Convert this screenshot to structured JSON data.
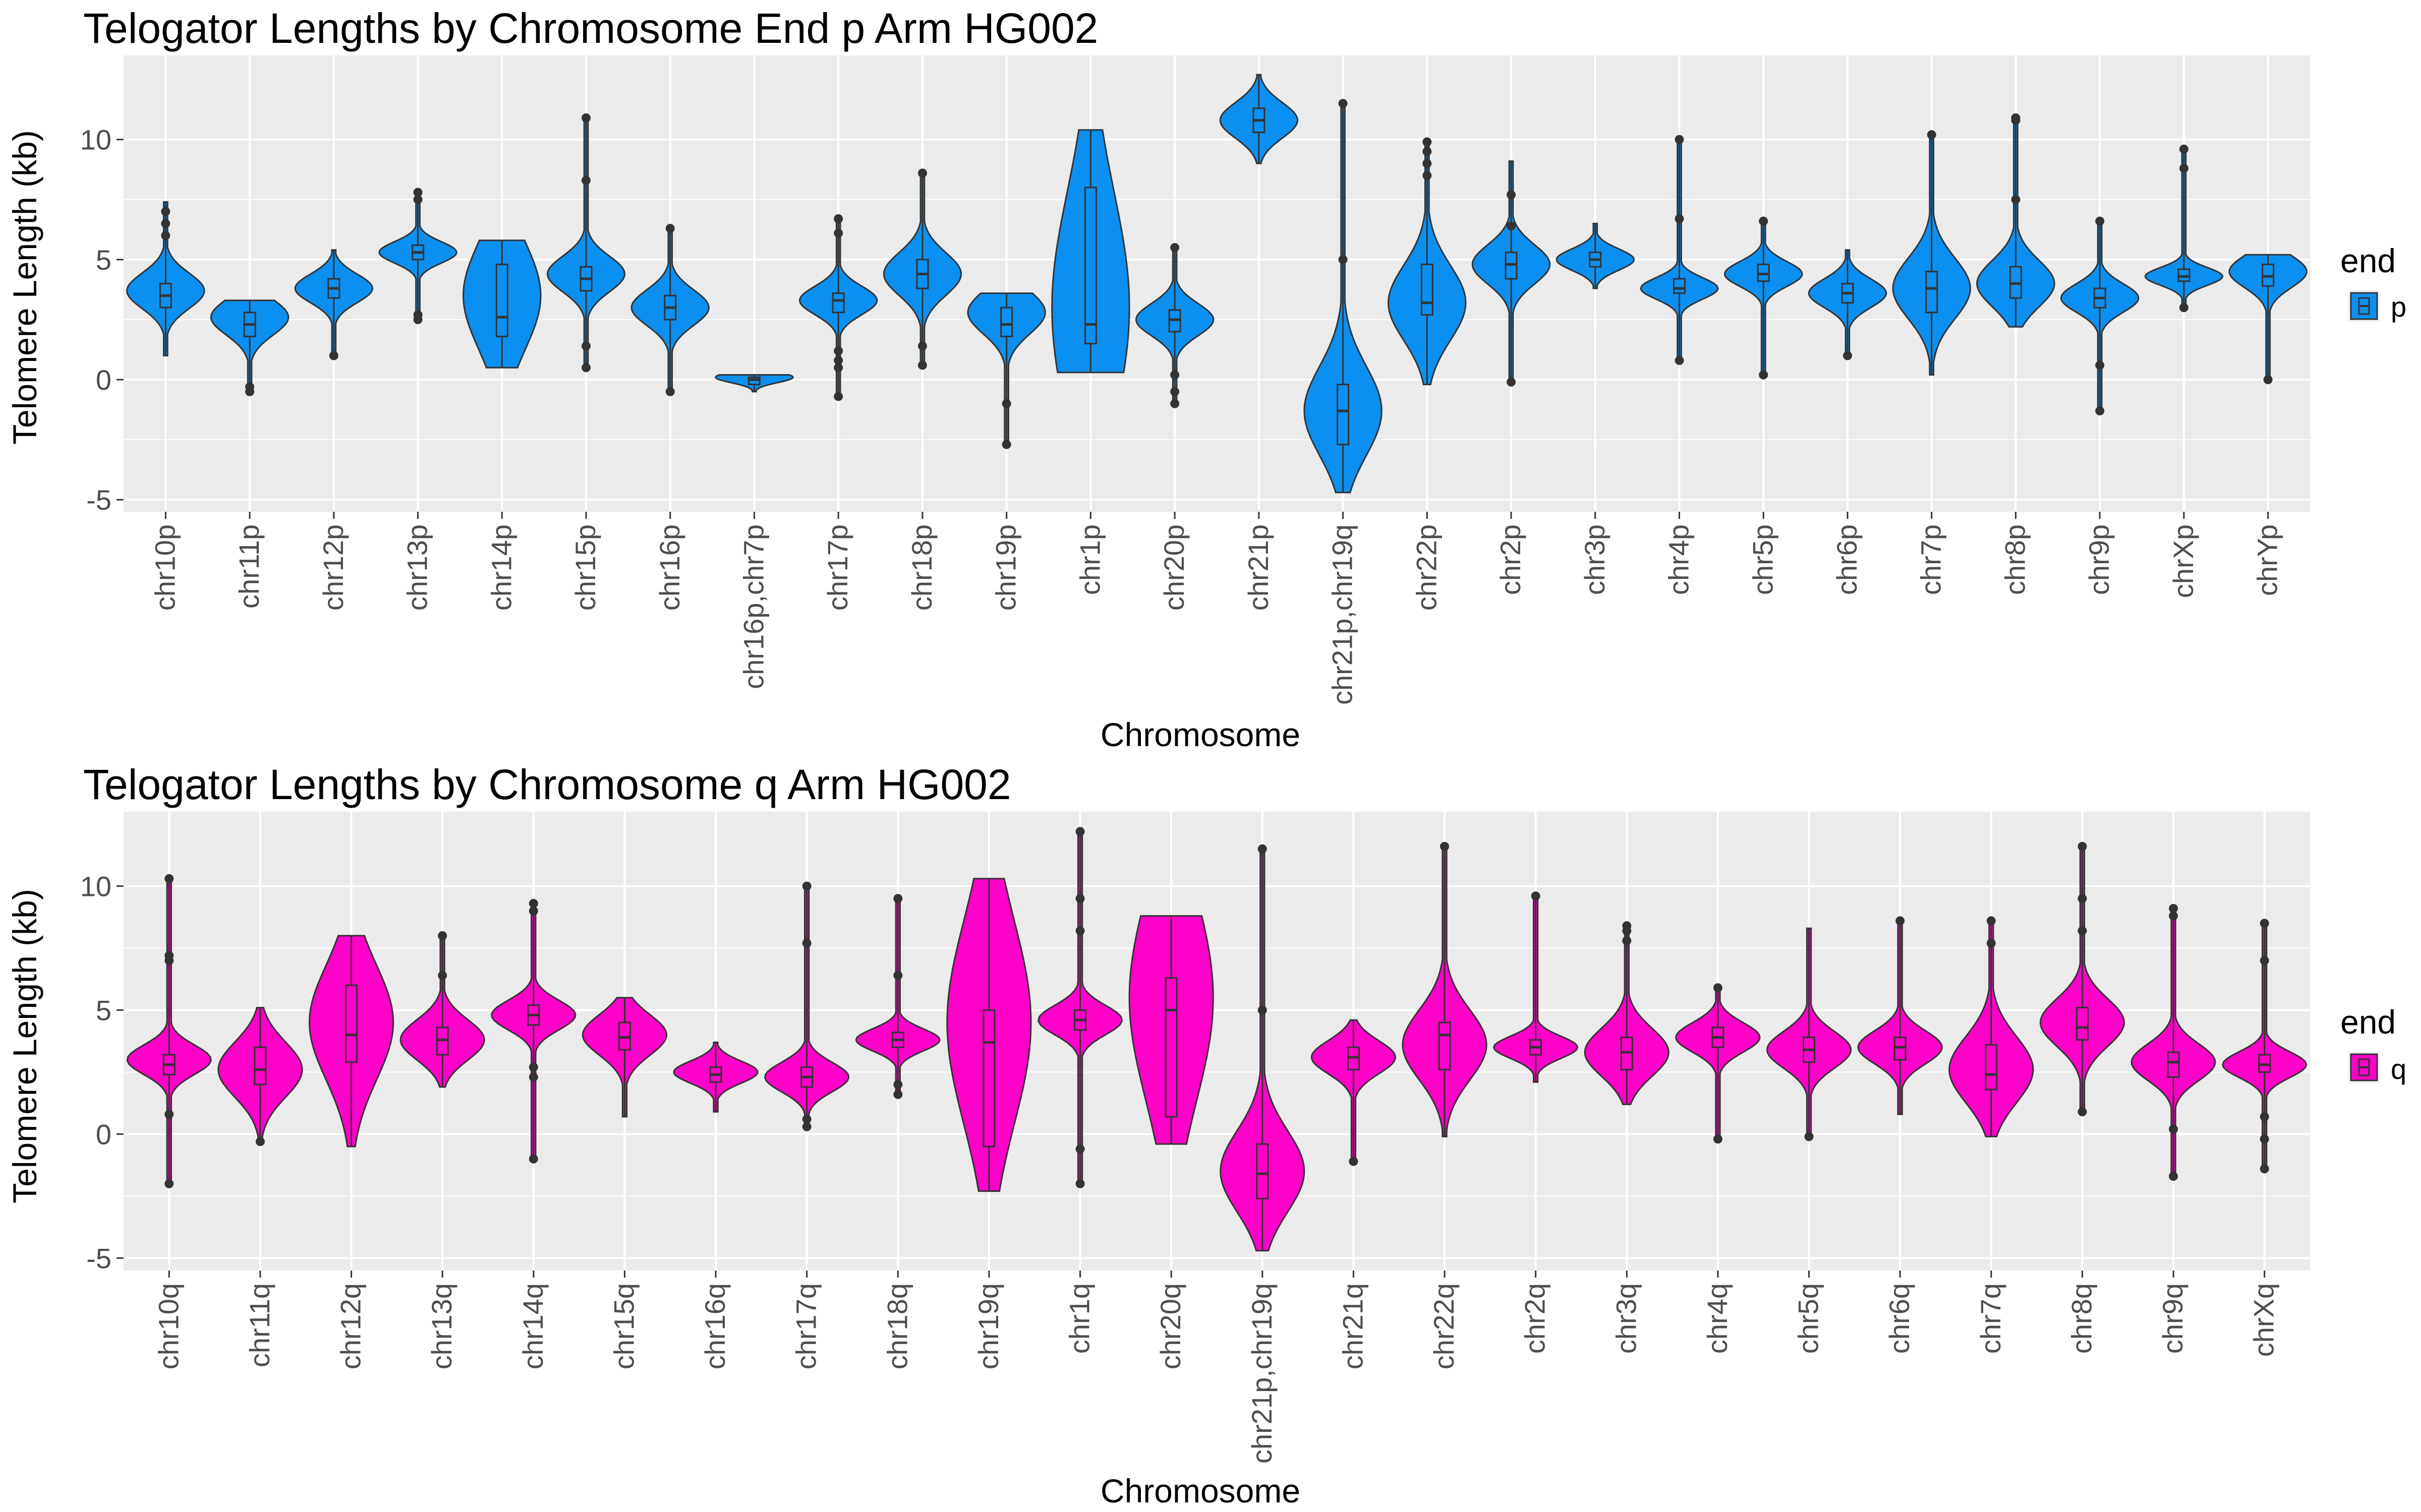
{
  "chart_data": [
    {
      "type": "violin",
      "title": "Telogator Lengths by Chromosome End p Arm HG002",
      "xlabel": "Chromosome",
      "ylabel": "Telomere Length (kb)",
      "ylim": [
        -5.5,
        13.5
      ],
      "yticks": [
        -5,
        0,
        5,
        10
      ],
      "grid": true,
      "legend": {
        "title": "end",
        "label": "p",
        "position": "right"
      },
      "color": "#0b8ff0",
      "categories": [
        "chr10p",
        "chr11p",
        "chr12p",
        "chr13p",
        "chr14p",
        "chr15p",
        "chr16p",
        "chr16p,chr7p",
        "chr17p",
        "chr18p",
        "chr19p",
        "chr1p",
        "chr20p",
        "chr21p",
        "chr21p,chr19q",
        "chr22p",
        "chr2p",
        "chr3p",
        "chr4p",
        "chr5p",
        "chr6p",
        "chr7p",
        "chr8p",
        "chr9p",
        "chrXp",
        "chrYp"
      ],
      "series": [
        {
          "min": 1.0,
          "q1": 3.0,
          "median": 3.5,
          "q3": 4.0,
          "max": 7.4,
          "peak": 3.7,
          "outliers": [
            6.0,
            6.5,
            7.0
          ]
        },
        {
          "min": -0.5,
          "q1": 1.8,
          "median": 2.3,
          "q3": 2.8,
          "max": 3.3,
          "peak": 2.6,
          "outliers": [
            -0.3,
            -0.5
          ]
        },
        {
          "min": 1.0,
          "q1": 3.4,
          "median": 3.8,
          "q3": 4.2,
          "max": 5.4,
          "peak": 3.8,
          "outliers": [
            1.0
          ]
        },
        {
          "min": 2.5,
          "q1": 5.0,
          "median": 5.3,
          "q3": 5.6,
          "max": 7.8,
          "peak": 5.3,
          "outliers": [
            2.5,
            2.7,
            7.5,
            7.8
          ]
        },
        {
          "min": 0.5,
          "q1": 1.8,
          "median": 2.6,
          "q3": 4.8,
          "max": 5.8,
          "peak": 3.5,
          "outliers": []
        },
        {
          "min": 0.5,
          "q1": 3.7,
          "median": 4.2,
          "q3": 4.7,
          "max": 10.9,
          "peak": 4.4,
          "outliers": [
            0.5,
            1.4,
            8.3,
            10.9
          ]
        },
        {
          "min": -0.6,
          "q1": 2.5,
          "median": 3.0,
          "q3": 3.5,
          "max": 6.4,
          "peak": 3.0,
          "outliers": [
            -0.5,
            6.3
          ]
        },
        {
          "min": -0.5,
          "q1": -0.2,
          "median": 0.0,
          "q3": 0.1,
          "max": 0.2,
          "peak": 0.1,
          "outliers": []
        },
        {
          "min": -0.7,
          "q1": 2.8,
          "median": 3.3,
          "q3": 3.6,
          "max": 6.7,
          "peak": 3.3,
          "outliers": [
            -0.7,
            0.5,
            0.8,
            1.2,
            6.1,
            6.7
          ]
        },
        {
          "min": 0.6,
          "q1": 3.8,
          "median": 4.4,
          "q3": 5.0,
          "max": 8.6,
          "peak": 4.4,
          "outliers": [
            0.6,
            1.4,
            8.6
          ]
        },
        {
          "min": -2.7,
          "q1": 1.8,
          "median": 2.3,
          "q3": 3.0,
          "max": 3.6,
          "peak": 2.8,
          "outliers": [
            -1.0,
            -2.7
          ]
        },
        {
          "min": 0.3,
          "q1": 1.5,
          "median": 2.3,
          "q3": 8.0,
          "max": 10.4,
          "peak": 3.0,
          "outliers": []
        },
        {
          "min": -1.0,
          "q1": 2.0,
          "median": 2.5,
          "q3": 2.9,
          "max": 5.5,
          "peak": 2.5,
          "outliers": [
            -1.0,
            -0.5,
            0.2,
            5.5
          ]
        },
        {
          "min": 9.0,
          "q1": 10.3,
          "median": 10.8,
          "q3": 11.3,
          "max": 12.7,
          "peak": 10.8,
          "outliers": []
        },
        {
          "min": -4.7,
          "q1": -2.7,
          "median": -1.3,
          "q3": -0.2,
          "max": 11.5,
          "peak": -1.3,
          "outliers": [
            5.0,
            11.5
          ]
        },
        {
          "min": -0.2,
          "q1": 2.7,
          "median": 3.2,
          "q3": 4.8,
          "max": 9.9,
          "peak": 3.2,
          "outliers": [
            8.5,
            9.0,
            9.5,
            9.9
          ]
        },
        {
          "min": -0.1,
          "q1": 4.2,
          "median": 4.8,
          "q3": 5.3,
          "max": 9.1,
          "peak": 4.8,
          "outliers": [
            -0.1,
            6.4,
            7.7
          ]
        },
        {
          "min": 3.8,
          "q1": 4.7,
          "median": 5.0,
          "q3": 5.3,
          "max": 6.5,
          "peak": 5.0,
          "outliers": []
        },
        {
          "min": 0.8,
          "q1": 3.6,
          "median": 3.8,
          "q3": 4.2,
          "max": 10.0,
          "peak": 3.8,
          "outliers": [
            0.8,
            6.7,
            10.0
          ]
        },
        {
          "min": 0.2,
          "q1": 4.1,
          "median": 4.4,
          "q3": 4.8,
          "max": 6.6,
          "peak": 4.4,
          "outliers": [
            0.2,
            6.6
          ]
        },
        {
          "min": 1.0,
          "q1": 3.2,
          "median": 3.6,
          "q3": 4.0,
          "max": 5.4,
          "peak": 3.6,
          "outliers": [
            1.0
          ]
        },
        {
          "min": 0.2,
          "q1": 2.8,
          "median": 3.8,
          "q3": 4.5,
          "max": 10.2,
          "peak": 3.8,
          "outliers": [
            10.2
          ]
        },
        {
          "min": 2.2,
          "q1": 3.4,
          "median": 4.0,
          "q3": 4.7,
          "max": 10.9,
          "peak": 4.0,
          "outliers": [
            7.5,
            10.8,
            10.9
          ]
        },
        {
          "min": -1.3,
          "q1": 3.0,
          "median": 3.4,
          "q3": 3.8,
          "max": 6.6,
          "peak": 3.4,
          "outliers": [
            -1.3,
            0.6,
            6.6
          ]
        },
        {
          "min": 3.0,
          "q1": 4.1,
          "median": 4.3,
          "q3": 4.6,
          "max": 9.6,
          "peak": 4.3,
          "outliers": [
            3.0,
            8.8,
            9.6
          ]
        },
        {
          "min": 0.0,
          "q1": 3.9,
          "median": 4.3,
          "q3": 4.8,
          "max": 5.2,
          "peak": 4.5,
          "outliers": [
            0.0
          ]
        }
      ]
    },
    {
      "type": "violin",
      "title": "Telogator Lengths by Chromosome q Arm HG002",
      "xlabel": "Chromosome",
      "ylabel": "Telomere Length (kb)",
      "ylim": [
        -5.5,
        13.0
      ],
      "yticks": [
        -5,
        0,
        5,
        10
      ],
      "grid": true,
      "legend": {
        "title": "end",
        "label": "q",
        "position": "right"
      },
      "color": "#ff00c8",
      "categories": [
        "chr10q",
        "chr11q",
        "chr12q",
        "chr13q",
        "chr14q",
        "chr15q",
        "chr16q",
        "chr17q",
        "chr18q",
        "chr19q",
        "chr1q",
        "chr20q",
        "chr21p,chr19q",
        "chr21q",
        "chr22q",
        "chr2q",
        "chr3q",
        "chr4q",
        "chr5q",
        "chr6q",
        "chr7q",
        "chr8q",
        "chr9q",
        "chrXq"
      ],
      "series": [
        {
          "min": -2.0,
          "q1": 2.4,
          "median": 2.8,
          "q3": 3.2,
          "max": 10.4,
          "peak": 3.0,
          "outliers": [
            -2.0,
            0.8,
            7.0,
            7.2,
            10.3
          ]
        },
        {
          "min": -0.3,
          "q1": 2.0,
          "median": 2.6,
          "q3": 3.5,
          "max": 5.1,
          "peak": 2.6,
          "outliers": [
            -0.3
          ]
        },
        {
          "min": -0.5,
          "q1": 2.9,
          "median": 4.0,
          "q3": 6.0,
          "max": 8.0,
          "peak": 4.5,
          "outliers": []
        },
        {
          "min": 1.9,
          "q1": 3.2,
          "median": 3.8,
          "q3": 4.3,
          "max": 8.0,
          "peak": 3.8,
          "outliers": [
            6.4,
            8.0
          ]
        },
        {
          "min": -1.0,
          "q1": 4.4,
          "median": 4.8,
          "q3": 5.2,
          "max": 9.4,
          "peak": 4.8,
          "outliers": [
            -1.0,
            2.3,
            2.7,
            9.0,
            9.3
          ]
        },
        {
          "min": 0.7,
          "q1": 3.4,
          "median": 3.9,
          "q3": 4.5,
          "max": 5.5,
          "peak": 4.0,
          "outliers": []
        },
        {
          "min": 0.9,
          "q1": 2.1,
          "median": 2.4,
          "q3": 2.7,
          "max": 3.7,
          "peak": 2.5,
          "outliers": []
        },
        {
          "min": 0.2,
          "q1": 1.9,
          "median": 2.3,
          "q3": 2.7,
          "max": 10.0,
          "peak": 2.3,
          "outliers": [
            0.3,
            0.6,
            7.7,
            10.0
          ]
        },
        {
          "min": 1.5,
          "q1": 3.5,
          "median": 3.8,
          "q3": 4.1,
          "max": 9.5,
          "peak": 3.8,
          "outliers": [
            1.6,
            2.0,
            6.4,
            9.5
          ]
        },
        {
          "min": -2.3,
          "q1": -0.5,
          "median": 3.7,
          "q3": 5.0,
          "max": 10.3,
          "peak": 4.5,
          "outliers": []
        },
        {
          "min": -2.0,
          "q1": 4.2,
          "median": 4.6,
          "q3": 5.0,
          "max": 12.2,
          "peak": 4.6,
          "outliers": [
            -2.0,
            -0.6,
            8.2,
            9.5,
            12.2
          ]
        },
        {
          "min": -0.4,
          "q1": 0.7,
          "median": 5.0,
          "q3": 6.3,
          "max": 8.8,
          "peak": 5.5,
          "outliers": []
        },
        {
          "min": -4.7,
          "q1": -2.6,
          "median": -1.6,
          "q3": -0.4,
          "max": 11.5,
          "peak": -1.5,
          "outliers": [
            5.0,
            11.5
          ]
        },
        {
          "min": -1.1,
          "q1": 2.6,
          "median": 3.1,
          "q3": 3.5,
          "max": 4.6,
          "peak": 3.1,
          "outliers": [
            -1.1
          ]
        },
        {
          "min": -0.1,
          "q1": 2.6,
          "median": 4.0,
          "q3": 4.5,
          "max": 11.6,
          "peak": 3.6,
          "outliers": [
            11.6
          ]
        },
        {
          "min": 2.1,
          "q1": 3.2,
          "median": 3.5,
          "q3": 3.8,
          "max": 9.6,
          "peak": 3.5,
          "outliers": [
            9.6
          ]
        },
        {
          "min": 1.2,
          "q1": 2.6,
          "median": 3.3,
          "q3": 3.9,
          "max": 8.4,
          "peak": 3.3,
          "outliers": [
            7.8,
            8.2,
            8.4
          ]
        },
        {
          "min": -0.2,
          "q1": 3.5,
          "median": 3.9,
          "q3": 4.3,
          "max": 5.9,
          "peak": 3.9,
          "outliers": [
            -0.2,
            5.9
          ]
        },
        {
          "min": -0.1,
          "q1": 2.9,
          "median": 3.4,
          "q3": 3.9,
          "max": 8.3,
          "peak": 3.4,
          "outliers": [
            -0.1
          ]
        },
        {
          "min": 0.8,
          "q1": 3.0,
          "median": 3.5,
          "q3": 3.9,
          "max": 8.6,
          "peak": 3.5,
          "outliers": [
            8.6
          ]
        },
        {
          "min": -0.1,
          "q1": 1.8,
          "median": 2.4,
          "q3": 3.6,
          "max": 8.6,
          "peak": 2.6,
          "outliers": [
            7.7,
            8.6
          ]
        },
        {
          "min": 0.9,
          "q1": 3.8,
          "median": 4.3,
          "q3": 5.1,
          "max": 11.6,
          "peak": 4.5,
          "outliers": [
            0.9,
            8.2,
            9.5,
            11.6
          ]
        },
        {
          "min": -1.7,
          "q1": 2.3,
          "median": 2.9,
          "q3": 3.3,
          "max": 9.1,
          "peak": 2.9,
          "outliers": [
            -1.7,
            0.2,
            8.8,
            9.1
          ]
        },
        {
          "min": -1.4,
          "q1": 2.5,
          "median": 2.8,
          "q3": 3.2,
          "max": 8.5,
          "peak": 2.8,
          "outliers": [
            -1.4,
            -0.2,
            0.7,
            7.0,
            8.5
          ]
        }
      ]
    }
  ]
}
